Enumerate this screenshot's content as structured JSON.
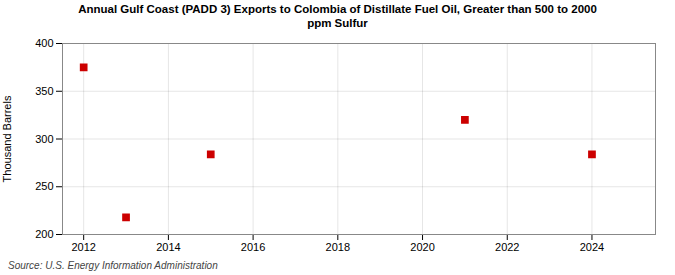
{
  "chart_data": {
    "type": "scatter",
    "title": "Annual Gulf Coast (PADD 3) Exports to Colombia of Distillate Fuel Oil, Greater than 500 to 2000\nppm Sulfur",
    "y_label": "Thousand Barrels",
    "annotations": [
      "Source: U.S. Energy Information Administration"
    ],
    "x": [
      2012,
      2013,
      2015,
      2021,
      2024
    ],
    "values": [
      375,
      218,
      284,
      320,
      284
    ],
    "color": "#cc0000",
    "marker": "square",
    "xlim": [
      2011.5,
      2025.5
    ],
    "xticks": [
      2012,
      2014,
      2016,
      2018,
      2020,
      2022,
      2024
    ],
    "ylim": [
      200,
      400
    ],
    "yticks": [
      200,
      250,
      300,
      350,
      400
    ],
    "grid": true
  }
}
